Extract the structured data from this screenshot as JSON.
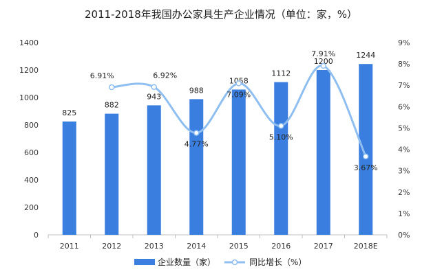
{
  "chart_data": {
    "type": "bar",
    "title": "2011-2018年我国办公家具生产企业情况（单位：家，%）",
    "categories": [
      "2011",
      "2012",
      "2013",
      "2014",
      "2015",
      "2016",
      "2017",
      "2018E"
    ],
    "series": [
      {
        "name": "企业数量（家）",
        "type": "bar",
        "axis": "left",
        "values": [
          825,
          882,
          943,
          988,
          1058,
          1112,
          1200,
          1244
        ],
        "labels": [
          "825",
          "882",
          "943",
          "988",
          "1058",
          "1112",
          "1200",
          "1244"
        ],
        "color": "#3a7fe0"
      },
      {
        "name": "同比增长（%）",
        "type": "line",
        "axis": "right",
        "x": [
          "2012",
          "2013",
          "2014",
          "2015",
          "2016",
          "2017",
          "2018E"
        ],
        "values": [
          6.91,
          6.92,
          4.77,
          7.09,
          5.1,
          7.91,
          3.67
        ],
        "labels": [
          "6.91%",
          "6.92%",
          "4.77%",
          "7.09%",
          "5.10%",
          "7.91%",
          "3.67%"
        ],
        "color": "#8fbef0"
      }
    ],
    "y_left": {
      "range": [
        0,
        1400
      ],
      "ticks": [
        "0",
        "200",
        "400",
        "600",
        "800",
        "1000",
        "1200",
        "1400"
      ]
    },
    "y_right": {
      "range": [
        0,
        9
      ],
      "ticks": [
        "0%",
        "1%",
        "2%",
        "3%",
        "4%",
        "5%",
        "6%",
        "7%",
        "8%",
        "9%"
      ]
    },
    "grid": false,
    "legend_position": "bottom"
  }
}
